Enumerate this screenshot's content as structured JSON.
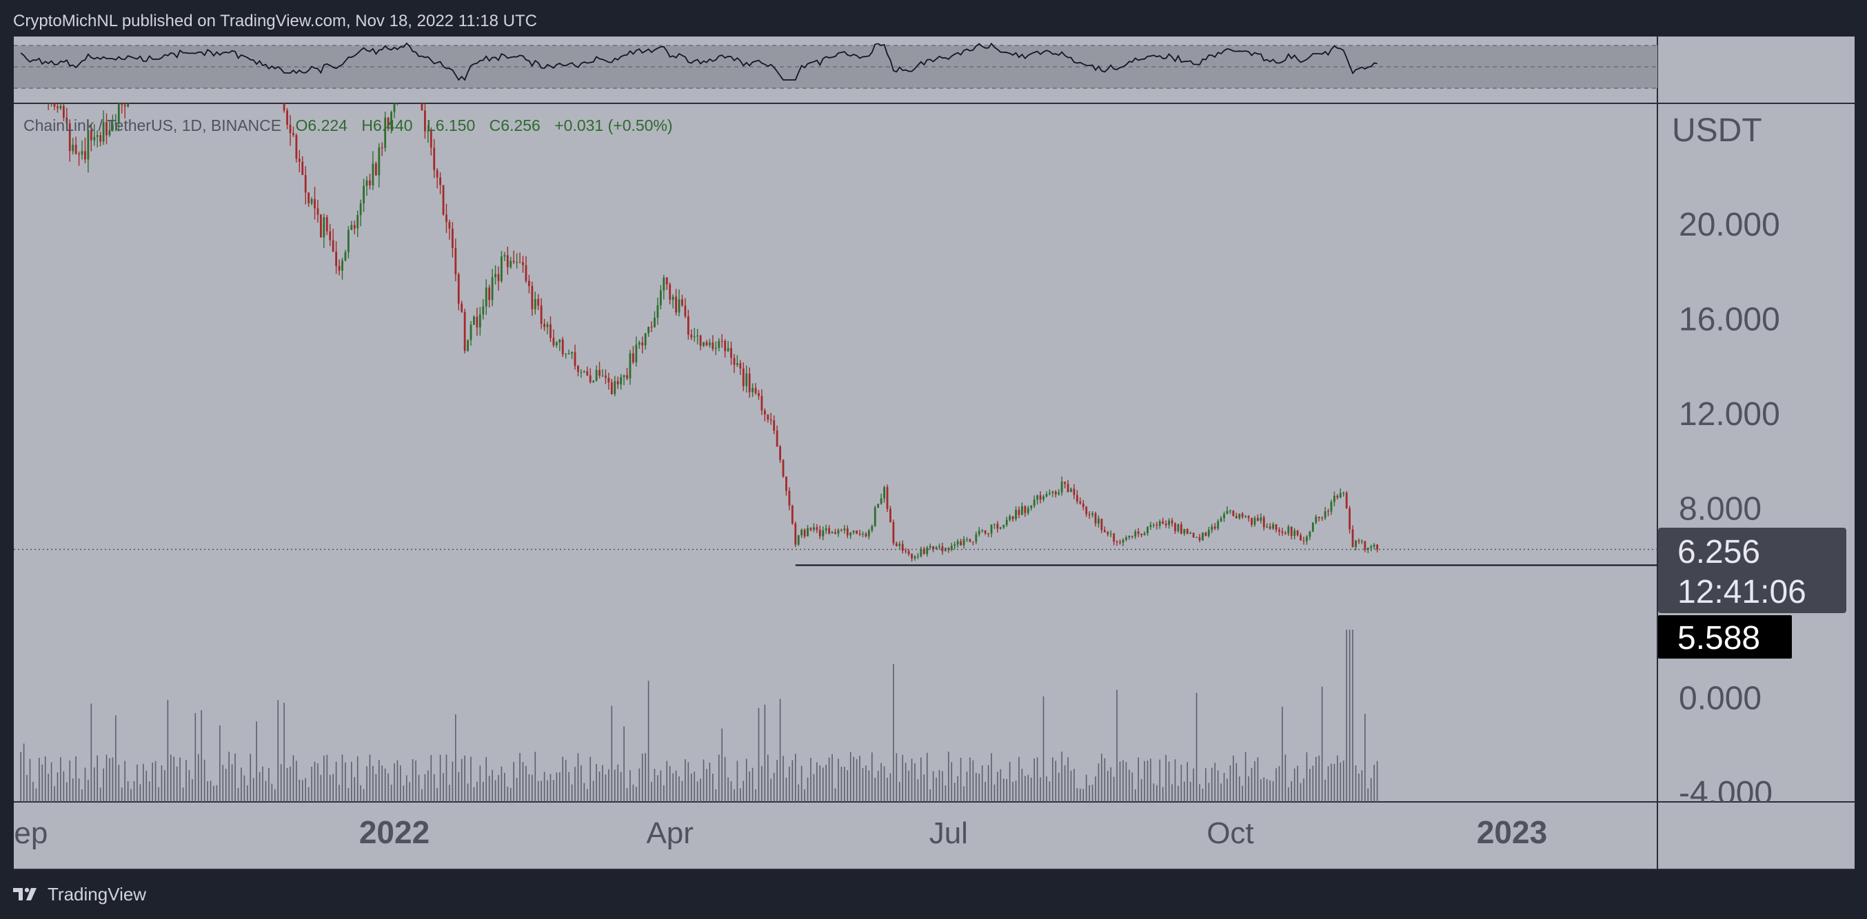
{
  "header": {
    "published_text": "CryptoMichNL published on TradingView.com, Nov 18, 2022 11:18 UTC"
  },
  "footer": {
    "logo_text": "TradingView",
    "logo_icon": "tradingview-logo-icon"
  },
  "legend": {
    "symbol": "ChainLink / TetherUS, 1D, BINANCE",
    "open": "O6.224",
    "high": "H6.440",
    "low": "L6.150",
    "close": "C6.256",
    "change": "+0.031 (+0.50%)"
  },
  "colors": {
    "page_bg": "#1e222d",
    "pane_bg": "#b2b5be",
    "rsi_band": "#9598a1",
    "up": "#2f6e2f",
    "down": "#a32a2a",
    "volume": "#5d606b",
    "legend_values": "#2d6a2d",
    "axis_text": "#50535e",
    "price_label_bg": "#434651",
    "support_label_bg": "#000000"
  },
  "chart_data": {
    "type": "candlestick",
    "symbol": "LINKUSDT",
    "interval": "1D",
    "currency_label": "USDT",
    "y_ticks": [
      "20.000",
      "16.000",
      "12.000",
      "8.000",
      "0.000",
      "-4.000"
    ],
    "ylim": [
      -4.4,
      26
    ],
    "x_ticks": [
      "Sep",
      "2022",
      "Apr",
      "Jul",
      "Oct",
      "2023"
    ],
    "x_tick_dates": [
      "2021-09-01",
      "2022-01-01",
      "2022-04-01",
      "2022-07-01",
      "2022-10-01",
      "2023-01-01"
    ],
    "last_price": "6.256",
    "last_price_value": 6.256,
    "countdown": "12:41:06",
    "support_label": "5.588",
    "support_value": 5.588,
    "support_line_dates": [
      "2022-05-12",
      "2023-01-31"
    ],
    "grid": false,
    "price_path_approx": [
      {
        "date": "2021-09-01",
        "close": 28.0
      },
      {
        "date": "2021-09-20",
        "close": 23.0
      },
      {
        "date": "2021-10-05",
        "close": 25.0
      },
      {
        "date": "2021-11-10",
        "close": 34.0
      },
      {
        "date": "2021-11-25",
        "close": 25.5
      },
      {
        "date": "2021-12-04",
        "close": 21.0
      },
      {
        "date": "2021-12-14",
        "close": 18.5
      },
      {
        "date": "2021-12-27",
        "close": 23.0
      },
      {
        "date": "2022-01-05",
        "close": 28.0
      },
      {
        "date": "2022-01-10",
        "close": 25.0
      },
      {
        "date": "2022-01-21",
        "close": 18.0
      },
      {
        "date": "2022-01-24",
        "close": 15.0
      },
      {
        "date": "2022-02-08",
        "close": 19.0
      },
      {
        "date": "2022-02-21",
        "close": 15.0
      },
      {
        "date": "2022-03-07",
        "close": 13.5
      },
      {
        "date": "2022-03-15",
        "close": 13.0
      },
      {
        "date": "2022-03-31",
        "close": 17.5
      },
      {
        "date": "2022-04-08",
        "close": 15.5
      },
      {
        "date": "2022-04-20",
        "close": 14.5
      },
      {
        "date": "2022-05-05",
        "close": 11.5
      },
      {
        "date": "2022-05-10",
        "close": 8.0
      },
      {
        "date": "2022-05-12",
        "close": 6.5
      },
      {
        "date": "2022-05-14",
        "close": 7.0
      },
      {
        "date": "2022-06-05",
        "close": 7.0
      },
      {
        "date": "2022-06-10",
        "close": 9.0
      },
      {
        "date": "2022-06-13",
        "close": 6.5
      },
      {
        "date": "2022-06-18",
        "close": 6.0
      },
      {
        "date": "2022-07-05",
        "close": 6.5
      },
      {
        "date": "2022-07-20",
        "close": 7.5
      },
      {
        "date": "2022-08-08",
        "close": 9.0
      },
      {
        "date": "2022-08-25",
        "close": 6.5
      },
      {
        "date": "2022-09-10",
        "close": 7.5
      },
      {
        "date": "2022-09-20",
        "close": 6.6
      },
      {
        "date": "2022-10-01",
        "close": 7.8
      },
      {
        "date": "2022-10-25",
        "close": 6.8
      },
      {
        "date": "2022-11-07",
        "close": 8.8
      },
      {
        "date": "2022-11-10",
        "close": 6.5
      },
      {
        "date": "2022-11-18",
        "close": 6.256
      }
    ]
  }
}
